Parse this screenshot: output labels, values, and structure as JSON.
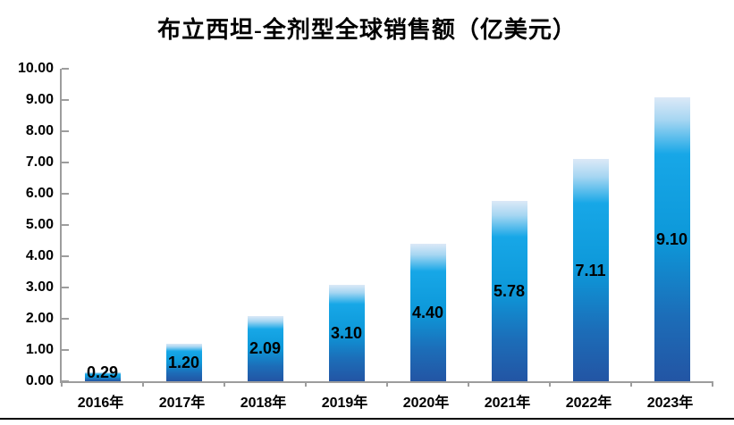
{
  "chart_data": {
    "type": "bar",
    "title": "布立西坦-全剂型全球销售额（亿美元）",
    "categories": [
      "2016年",
      "2017年",
      "2018年",
      "2019年",
      "2020年",
      "2021年",
      "2022年",
      "2023年"
    ],
    "values": [
      0.29,
      1.2,
      2.09,
      3.1,
      4.4,
      5.78,
      7.11,
      9.1
    ],
    "value_labels": [
      "0.29",
      "1.20",
      "2.09",
      "3.10",
      "4.40",
      "5.78",
      "7.11",
      "9.10"
    ],
    "xlabel": "",
    "ylabel": "",
    "ylim": [
      0,
      10
    ],
    "y_tick_step": 1.0,
    "y_tick_labels_top_to_bottom": [
      "10.00",
      "9.00",
      "8.00",
      "7.00",
      "6.00",
      "5.00",
      "4.00",
      "3.00",
      "2.00",
      "1.00",
      "0.00"
    ],
    "grid": false,
    "legend": false,
    "value_label_position": "center-of-bar",
    "colors": {
      "axis": "#9d9d9d",
      "text": "#000000",
      "bottom_border": "#000000",
      "bar_gradient_top_to_bottom": [
        [
          "0%",
          "#dce9f7"
        ],
        [
          "8%",
          "#a6d6f2"
        ],
        [
          "20%",
          "#17a7e7"
        ],
        [
          "50%",
          "#0d98d9"
        ],
        [
          "77%",
          "#1c6db8"
        ],
        [
          "100%",
          "#2355a4"
        ]
      ]
    }
  }
}
